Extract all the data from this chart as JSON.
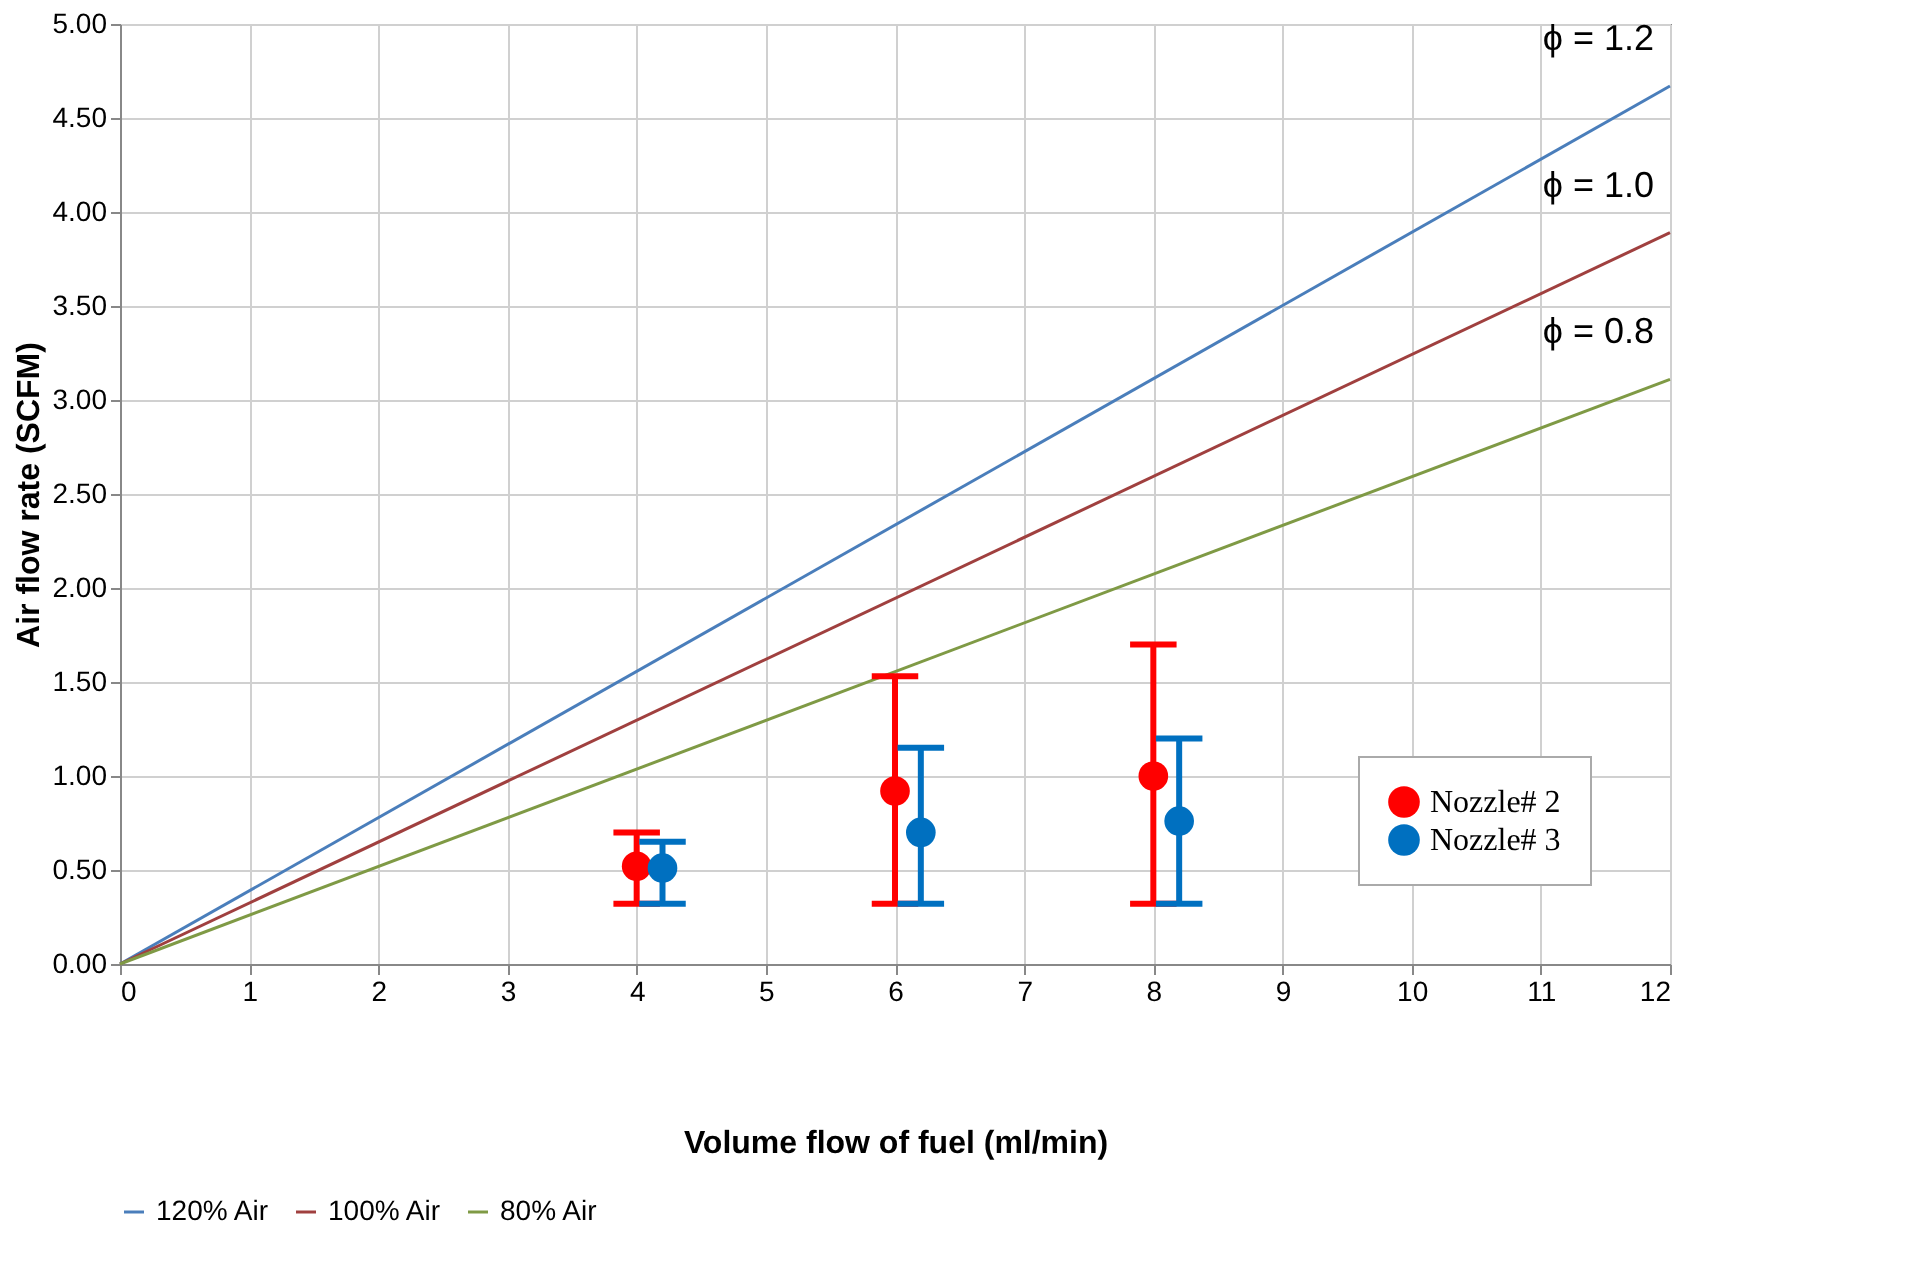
{
  "chart_data": {
    "type": "scatter",
    "xlabel": "Volume flow of fuel (ml/min)",
    "ylabel": "Air flow rate (SCFM)",
    "xlim": [
      0,
      12
    ],
    "xticks": [
      0,
      1,
      2,
      3,
      4,
      5,
      6,
      7,
      8,
      9,
      10,
      11,
      12
    ],
    "ylim": [
      0,
      5
    ],
    "yticks": [
      {
        "value": 0,
        "label": "0.00"
      },
      {
        "value": 0.5,
        "label": "0.50"
      },
      {
        "value": 1,
        "label": "1.00"
      },
      {
        "value": 1.5,
        "label": "1.50"
      },
      {
        "value": 2,
        "label": "2.00"
      },
      {
        "value": 2.5,
        "label": "2.50"
      },
      {
        "value": 3,
        "label": "3.00"
      },
      {
        "value": 3.5,
        "label": "3.50"
      },
      {
        "value": 4,
        "label": "4.00"
      },
      {
        "value": 4.5,
        "label": "4.50"
      },
      {
        "value": 5,
        "label": "5.00"
      }
    ],
    "grid": true,
    "legend": "bottom right",
    "series": [
      {
        "name": "Nozzle# 2",
        "marker": "circle",
        "color": "#ff0000",
        "x": [
          4,
          6,
          8
        ],
        "values": [
          0.52,
          0.92,
          1.0
        ],
        "errors": [
          [
            0.32,
            0.7
          ],
          [
            0.32,
            1.53
          ],
          [
            0.32,
            1.7
          ]
        ]
      },
      {
        "name": "Nozzle# 3",
        "marker": "circle",
        "color": "#0070c0",
        "x": [
          4.2,
          6.2,
          8.2
        ],
        "values": [
          0.51,
          0.7,
          0.76
        ],
        "errors": [
          [
            0.32,
            0.65
          ],
          [
            0.32,
            1.15
          ],
          [
            0.32,
            1.2
          ]
        ]
      },
      {
        "name": "120% Air",
        "type": "line",
        "color": "#4a7ebb",
        "x": [
          0,
          12
        ],
        "values": [
          0,
          4.67
        ]
      },
      {
        "name": "100% Air",
        "type": "line",
        "color": "#a0403f",
        "x": [
          0,
          12
        ],
        "values": [
          0,
          3.89
        ]
      },
      {
        "name": "80% Air",
        "type": "line",
        "color": "#7f9a45",
        "x": [
          0,
          12
        ],
        "values": [
          0,
          3.11
        ]
      }
    ],
    "annotations": [
      "ϕ = 1.2",
      "ϕ = 1.0",
      "ϕ = 0.8"
    ]
  }
}
